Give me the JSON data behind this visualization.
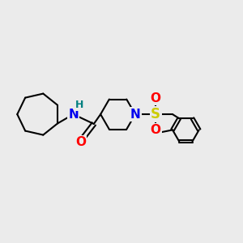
{
  "background_color": "#ebebeb",
  "bond_color": "#000000",
  "bond_width": 1.5,
  "figsize": [
    3.0,
    3.0
  ],
  "dpi": 100,
  "atom_colors": {
    "N": "#0000ee",
    "O": "#ff0000",
    "S": "#cccc00",
    "H": "#008080",
    "C": "#000000"
  }
}
